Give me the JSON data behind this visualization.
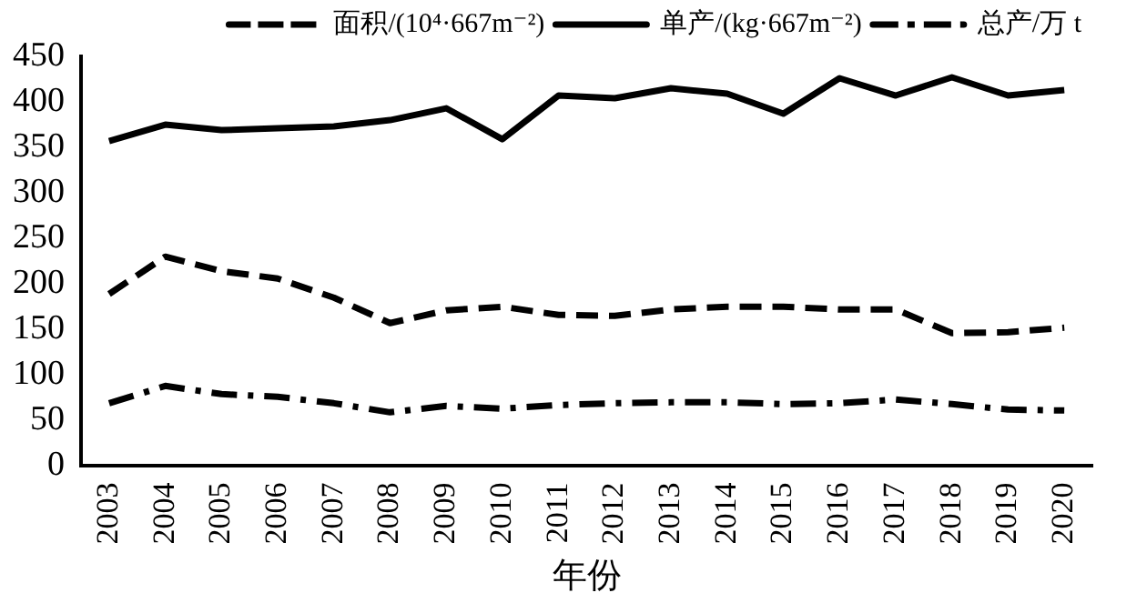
{
  "chart_data": {
    "type": "line",
    "xlabel": "年份",
    "categories": [
      "2003",
      "2004",
      "2005",
      "2006",
      "2007",
      "2008",
      "2009",
      "2010",
      "2011",
      "2012",
      "2013",
      "2014",
      "2015",
      "2016",
      "2017",
      "2018",
      "2019",
      "2020"
    ],
    "series": [
      {
        "name": "面积/(10⁴·667m⁻²)",
        "color": "#000000",
        "line_style": "dashed",
        "values": [
          189,
          230,
          214,
          206,
          185,
          157,
          171,
          175,
          166,
          165,
          172,
          175,
          175,
          172,
          172,
          146,
          147,
          152
        ]
      },
      {
        "name": "单产/(kg·667m⁻²)",
        "color": "#000000",
        "line_style": "solid",
        "values": [
          357,
          375,
          369,
          371,
          373,
          380,
          393,
          359,
          407,
          404,
          415,
          409,
          387,
          426,
          407,
          427,
          407,
          413
        ]
      },
      {
        "name": "总产/万 t",
        "color": "#000000",
        "line_style": "dashdot",
        "values": [
          69,
          88,
          79,
          76,
          69,
          59,
          66,
          63,
          67,
          69,
          70,
          70,
          68,
          69,
          73,
          68,
          62,
          61
        ]
      }
    ],
    "ylim": [
      0,
      450
    ],
    "yticks": [
      0,
      50,
      100,
      150,
      200,
      250,
      300,
      350,
      400,
      450
    ],
    "grid": false,
    "legend": "top",
    "marker": "none"
  }
}
